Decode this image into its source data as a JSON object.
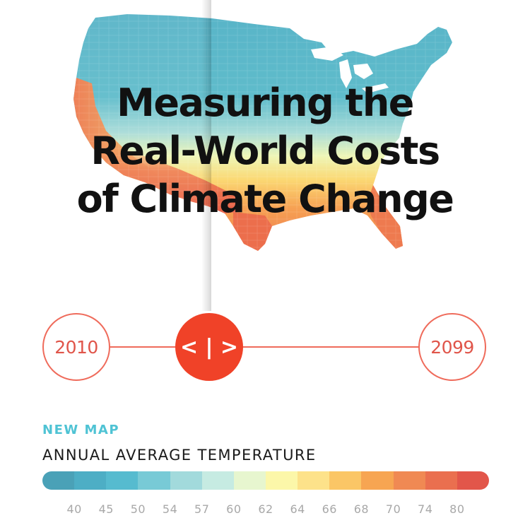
{
  "title": "Measuring the\nReal-World Costs\nof Climate Change",
  "slider": {
    "start_year": "2010",
    "end_year": "2099",
    "handle_label": "< | >"
  },
  "legend": {
    "tag": "NEW MAP",
    "title": "ANNUAL AVERAGE TEMPERATURE",
    "ticks": [
      "40",
      "45",
      "50",
      "54",
      "57",
      "60",
      "62",
      "64",
      "66",
      "68",
      "70",
      "74",
      "80"
    ],
    "colors": [
      "#4aa1b7",
      "#4daec5",
      "#56bbcf",
      "#78cad6",
      "#a2dadc",
      "#c6ebe2",
      "#e7f6cf",
      "#fcf7a9",
      "#fde28a",
      "#fbc666",
      "#f7a552",
      "#f08953",
      "#ea6f4f",
      "#e2564a"
    ]
  },
  "colors": {
    "accent": "#ef6b5b",
    "handle": "#f04228",
    "tag": "#4fc3d4"
  },
  "icons": {
    "handle": "arrows-left-right-icon"
  }
}
